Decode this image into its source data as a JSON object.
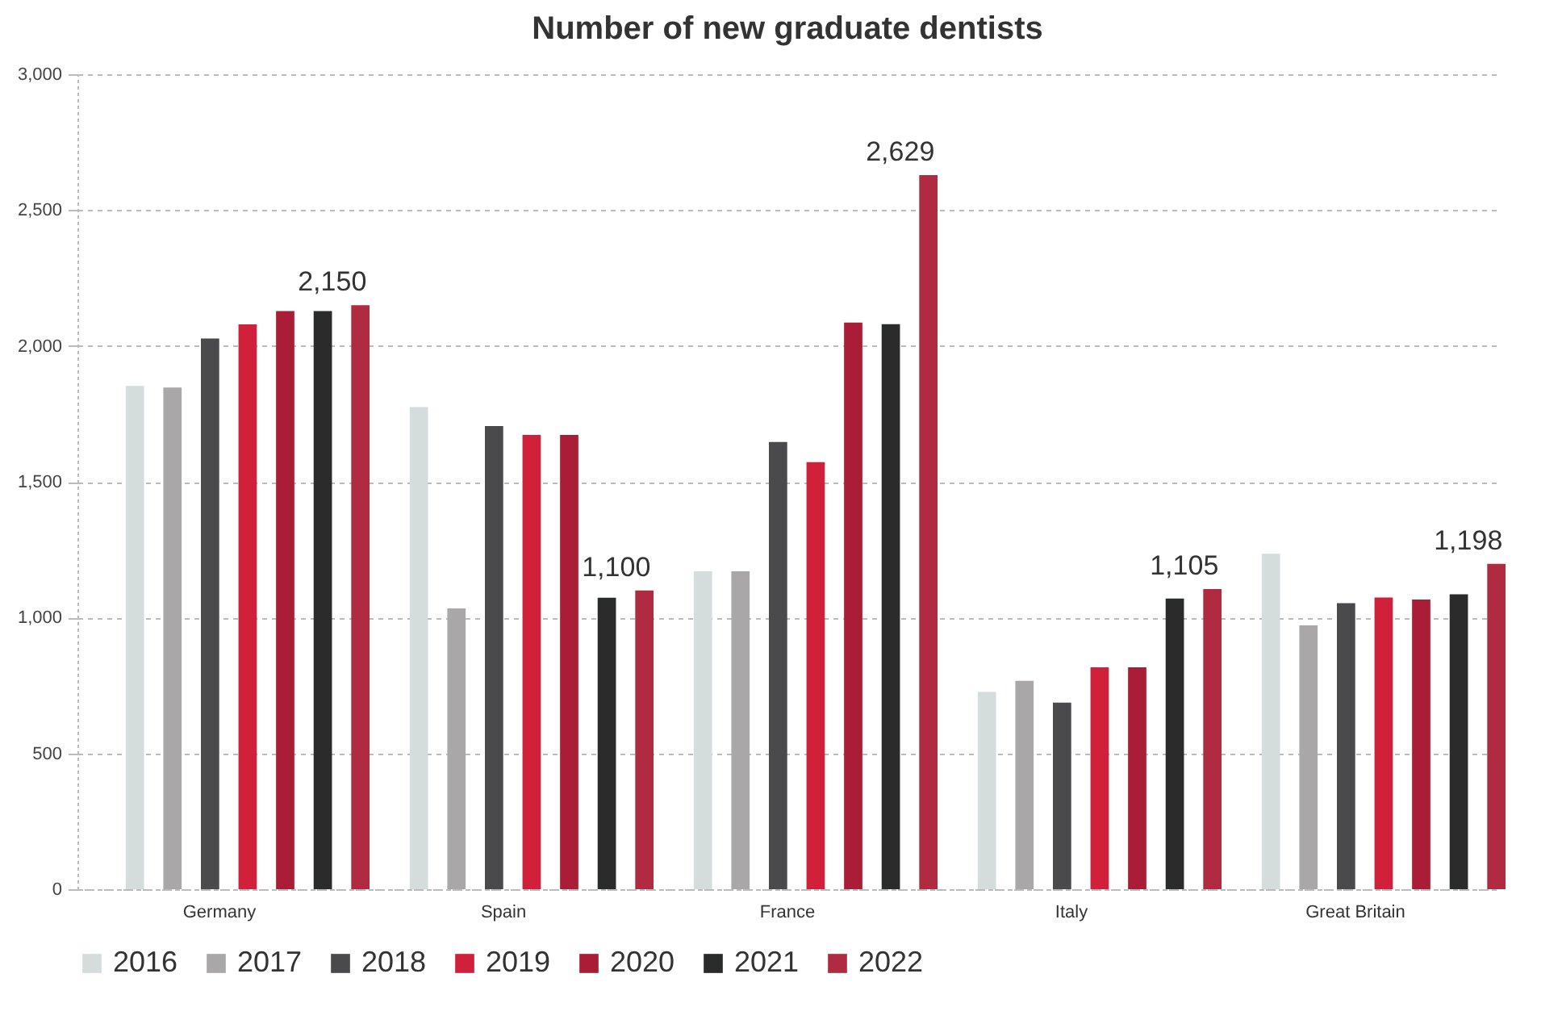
{
  "chart_data": {
    "type": "bar",
    "title": "Number of new graduate dentists",
    "categories": [
      "Germany",
      "Spain",
      "France",
      "Italy",
      "Great Britain"
    ],
    "series": [
      {
        "name": "2016",
        "color": "#d5dcdc",
        "values": [
          1853,
          1775,
          1170,
          726,
          1235
        ]
      },
      {
        "name": "2017",
        "color": "#a9a7a7",
        "values": [
          1847,
          1034,
          1170,
          767,
          971
        ]
      },
      {
        "name": "2018",
        "color": "#4a4a4c",
        "values": [
          2027,
          1705,
          1646,
          687,
          1053
        ]
      },
      {
        "name": "2019",
        "color": "#d0203a",
        "values": [
          2079,
          1672,
          1572,
          817,
          1074
        ]
      },
      {
        "name": "2020",
        "color": "#a91d36",
        "values": [
          2128,
          1672,
          2086,
          817,
          1066
        ]
      },
      {
        "name": "2021",
        "color": "#2a2c2c",
        "values": [
          2128,
          1073,
          2080,
          1070,
          1086
        ]
      },
      {
        "name": "2022",
        "color": "#b02a40",
        "values": [
          2150,
          1100,
          2629,
          1105,
          1198
        ],
        "value_labels": [
          "2,150",
          "1,100",
          "2,629",
          "1,105",
          "1,198"
        ]
      }
    ],
    "ylim": [
      0,
      3000
    ],
    "yticks": [
      0,
      500,
      {
        "value": 1000,
        "label": "1,000"
      },
      {
        "value": 1500,
        "label": "1,500"
      },
      {
        "value": 2000,
        "label": "2,000"
      },
      {
        "value": 2500,
        "label": "2,500"
      },
      {
        "value": 3000,
        "label": "3,000"
      }
    ],
    "grid": "y",
    "legend": "bottom"
  }
}
